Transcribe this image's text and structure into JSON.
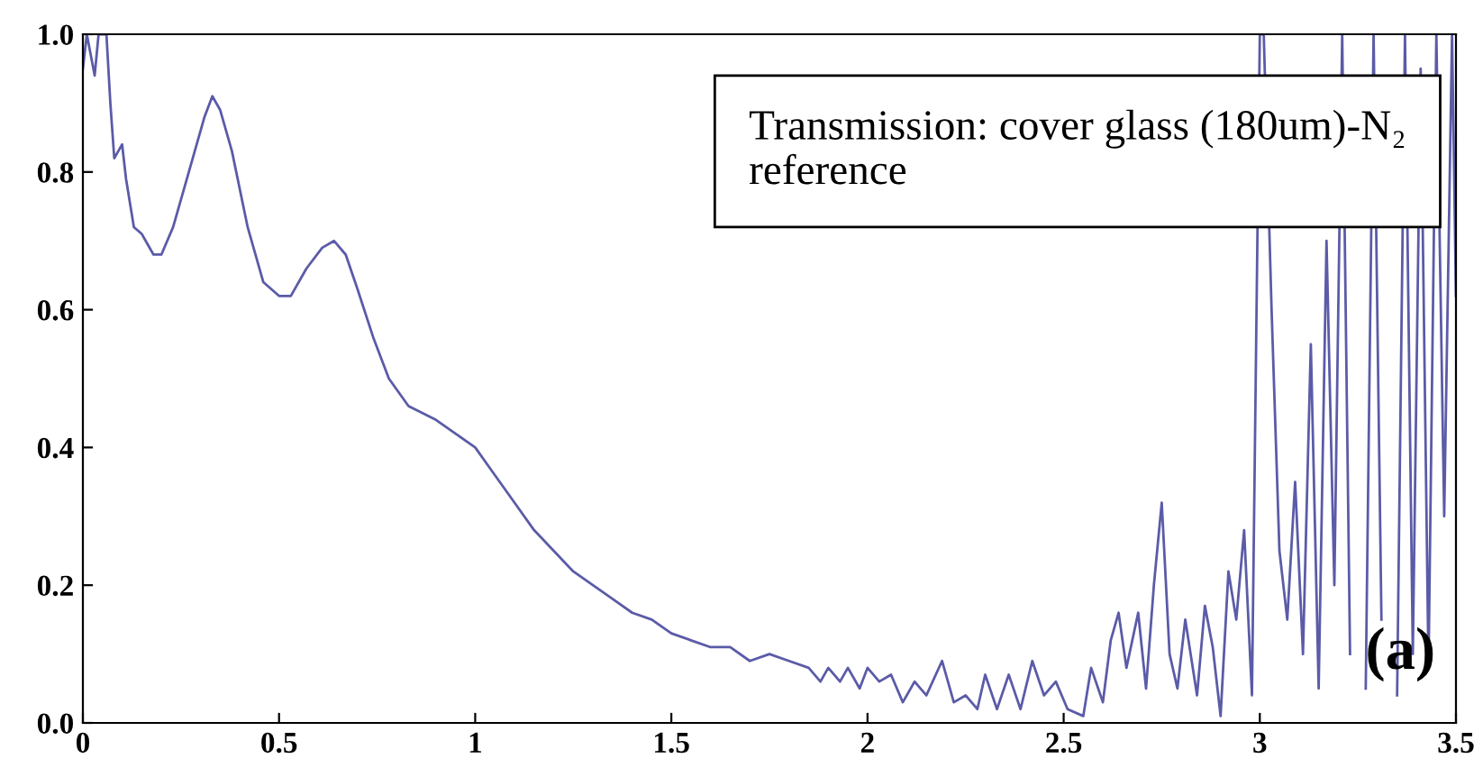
{
  "chart_data": {
    "type": "line",
    "xlim": [
      0,
      3.5
    ],
    "ylim": [
      0.0,
      1.0
    ],
    "xticks": [
      0,
      0.5,
      1,
      1.5,
      2,
      2.5,
      3,
      3.5
    ],
    "yticks": [
      {
        "value": 0,
        "label": "0.0"
      },
      0.2,
      0.4,
      0.6,
      0.8,
      {
        "value": 1,
        "label": "1.0"
      }
    ],
    "grid": false,
    "legend": false,
    "marker": "none",
    "line_style": "solid",
    "annotations": [
      "Transmission: cover glass (180um)-N₂ reference",
      "(a)"
    ],
    "series": [
      {
        "color": "#5b5ba8",
        "x": [
          0.0,
          0.01,
          0.03,
          0.04,
          0.06,
          0.07,
          0.08,
          0.09,
          0.1,
          0.11,
          0.13,
          0.15,
          0.18,
          0.2,
          0.23,
          0.27,
          0.31,
          0.33,
          0.35,
          0.38,
          0.42,
          0.46,
          0.5,
          0.53,
          0.57,
          0.61,
          0.64,
          0.67,
          0.7,
          0.74,
          0.78,
          0.83,
          0.9,
          0.95,
          1.0,
          1.05,
          1.1,
          1.15,
          1.2,
          1.25,
          1.3,
          1.35,
          1.4,
          1.45,
          1.5,
          1.55,
          1.6,
          1.65,
          1.7,
          1.75,
          1.8,
          1.85,
          1.88,
          1.9,
          1.93,
          1.95,
          1.98,
          2.0,
          2.03,
          2.06,
          2.09,
          2.12,
          2.15,
          2.19,
          2.22,
          2.25,
          2.28,
          2.3,
          2.33,
          2.36,
          2.39,
          2.42,
          2.45,
          2.48,
          2.51,
          2.55,
          2.57,
          2.6,
          2.62,
          2.64,
          2.66,
          2.69,
          2.71,
          2.73,
          2.75,
          2.77,
          2.79,
          2.81,
          2.84,
          2.86,
          2.88,
          2.9,
          2.92,
          2.94,
          2.96,
          2.98,
          3.0,
          3.01,
          3.03,
          3.05,
          3.07,
          3.09,
          3.11,
          3.13,
          3.15,
          3.17,
          3.19,
          3.21,
          3.23,
          3.25,
          3.27,
          3.29,
          3.31,
          3.33,
          3.35,
          3.37,
          3.39,
          3.41,
          3.43,
          3.45,
          3.47,
          3.49,
          3.5
        ],
        "values": [
          0.95,
          1.0,
          0.94,
          1.0,
          1.0,
          0.9,
          0.82,
          0.83,
          0.84,
          0.79,
          0.72,
          0.71,
          0.68,
          0.68,
          0.72,
          0.8,
          0.88,
          0.91,
          0.89,
          0.83,
          0.72,
          0.64,
          0.62,
          0.62,
          0.66,
          0.69,
          0.7,
          0.68,
          0.63,
          0.56,
          0.5,
          0.46,
          0.44,
          0.42,
          0.4,
          0.36,
          0.32,
          0.28,
          0.25,
          0.22,
          0.2,
          0.18,
          0.16,
          0.15,
          0.13,
          0.12,
          0.11,
          0.11,
          0.09,
          0.1,
          0.09,
          0.08,
          0.06,
          0.08,
          0.06,
          0.08,
          0.05,
          0.08,
          0.06,
          0.07,
          0.03,
          0.06,
          0.04,
          0.09,
          0.03,
          0.04,
          0.02,
          0.07,
          0.02,
          0.07,
          0.02,
          0.09,
          0.04,
          0.06,
          0.02,
          0.01,
          0.08,
          0.03,
          0.12,
          0.16,
          0.08,
          0.16,
          0.05,
          0.2,
          0.32,
          0.1,
          0.05,
          0.15,
          0.04,
          0.17,
          0.11,
          0.01,
          0.22,
          0.15,
          0.28,
          0.04,
          1.0,
          1.0,
          0.6,
          0.25,
          0.15,
          0.35,
          0.1,
          0.55,
          0.05,
          0.7,
          0.2,
          1.0,
          0.1,
          null,
          0.05,
          1.0,
          0.15,
          null,
          0.04,
          1.0,
          0.1,
          0.95,
          0.08,
          1.0,
          0.3,
          1.0,
          0.62
        ]
      }
    ]
  }
}
